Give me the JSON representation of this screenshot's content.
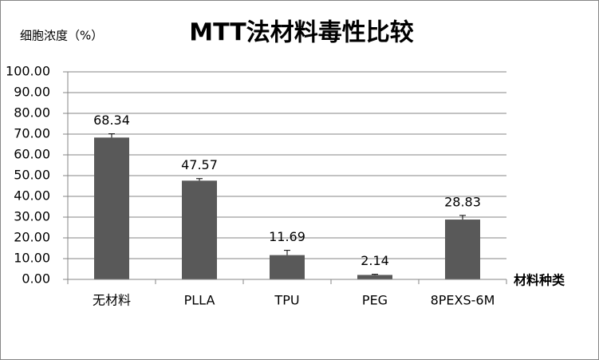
{
  "chart_data": {
    "type": "bar",
    "title": "MTT法材料毒性比较",
    "y_label": "细胞浓度（%）",
    "x_label": "材料种类",
    "categories": [
      "无材料",
      "PLLA",
      "TPU",
      "PEG",
      "8PEXS-6M"
    ],
    "values": [
      68.34,
      47.57,
      11.69,
      2.14,
      28.83
    ],
    "errors": [
      1.8,
      1.0,
      2.3,
      0.3,
      2.0
    ],
    "color": "#595959",
    "ylim": [
      0,
      100
    ],
    "yticks": [
      {
        "value": 0,
        "label": "0.00"
      },
      {
        "value": 10,
        "label": "10.00"
      },
      {
        "value": 20,
        "label": "20.00"
      },
      {
        "value": 30,
        "label": "30.00"
      },
      {
        "value": 40,
        "label": "40.00"
      },
      {
        "value": 50,
        "label": "50.00"
      },
      {
        "value": 60,
        "label": "60.00"
      },
      {
        "value": 70,
        "label": "70.00"
      },
      {
        "value": 80,
        "label": "80.00"
      },
      {
        "value": 90,
        "label": "90.00"
      },
      {
        "value": 100,
        "label": "100.00"
      }
    ],
    "grid": true
  }
}
